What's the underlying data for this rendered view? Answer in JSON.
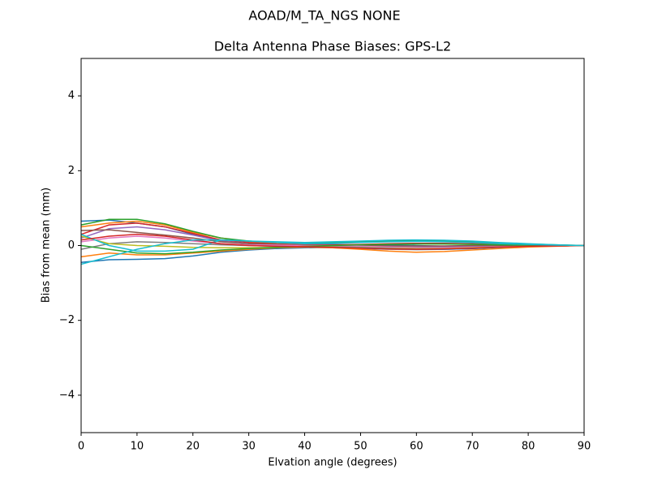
{
  "chart_data": {
    "type": "line",
    "suptitle": "AOAD/M_TA_NGS   NONE",
    "title": "Delta Antenna Phase Biases: GPS-L2",
    "xlabel": "Elvation angle (degrees)",
    "ylabel": "Bias from mean (mm)",
    "x": [
      0,
      5,
      10,
      15,
      20,
      25,
      30,
      35,
      40,
      45,
      50,
      55,
      60,
      65,
      70,
      75,
      80,
      85,
      90
    ],
    "xlim": [
      0,
      90
    ],
    "xticks": [
      0,
      10,
      20,
      30,
      40,
      50,
      60,
      70,
      80,
      90
    ],
    "ylim": [
      -5,
      5
    ],
    "yticks": [
      {
        "value": -4,
        "label": "−4"
      },
      {
        "value": -2,
        "label": "−2"
      },
      0,
      2,
      4
    ],
    "series": [
      {
        "color": "#1f77b4",
        "values": [
          0.65,
          0.68,
          0.6,
          0.5,
          0.3,
          0.15,
          0.1,
          0.08,
          0.05,
          0.03,
          0.02,
          0.01,
          0,
          -0.02,
          -0.03,
          -0.03,
          -0.02,
          -0.01,
          0
        ]
      },
      {
        "color": "#ff7f0e",
        "values": [
          0.5,
          0.6,
          0.65,
          0.55,
          0.35,
          0.2,
          0.1,
          0.05,
          0.02,
          0,
          -0.02,
          -0.04,
          -0.05,
          -0.05,
          -0.04,
          -0.03,
          -0.02,
          -0.01,
          0
        ]
      },
      {
        "color": "#2ca02c",
        "values": [
          0.55,
          0.7,
          0.7,
          0.58,
          0.38,
          0.2,
          0.12,
          0.08,
          0.06,
          0.08,
          0.1,
          0.12,
          0.13,
          0.12,
          0.1,
          0.07,
          0.04,
          0.02,
          0
        ]
      },
      {
        "color": "#d62728",
        "values": [
          0.3,
          0.55,
          0.6,
          0.5,
          0.32,
          0.15,
          0.08,
          0.04,
          0.02,
          0.02,
          0.03,
          0.05,
          0.06,
          0.06,
          0.05,
          0.03,
          0.02,
          0.01,
          0
        ]
      },
      {
        "color": "#9467bd",
        "values": [
          0.2,
          0.45,
          0.5,
          0.42,
          0.28,
          0.12,
          0.05,
          0.02,
          0,
          -0.02,
          -0.03,
          -0.04,
          -0.04,
          -0.03,
          -0.02,
          -0.01,
          0,
          0,
          0
        ]
      },
      {
        "color": "#8c564b",
        "values": [
          0.4,
          0.42,
          0.35,
          0.28,
          0.2,
          0.1,
          0.05,
          0.03,
          0.01,
          0,
          0,
          -0.01,
          -0.01,
          -0.01,
          0,
          0,
          0,
          0,
          0
        ]
      },
      {
        "color": "#e377c2",
        "values": [
          0.1,
          0.2,
          0.25,
          0.2,
          0.12,
          0.05,
          0.02,
          0.01,
          0,
          0,
          -0.02,
          -0.04,
          -0.06,
          -0.06,
          -0.05,
          -0.03,
          -0.02,
          -0.01,
          0
        ]
      },
      {
        "color": "#7f7f7f",
        "values": [
          -0.1,
          0.05,
          0.1,
          0.08,
          0.05,
          0.02,
          0,
          -0.02,
          -0.04,
          -0.06,
          -0.08,
          -0.1,
          -0.11,
          -0.1,
          -0.08,
          -0.05,
          -0.03,
          -0.01,
          0
        ]
      },
      {
        "color": "#bcbd22",
        "values": [
          0.25,
          0.05,
          0,
          -0.02,
          -0.05,
          -0.06,
          -0.06,
          -0.05,
          -0.04,
          -0.04,
          -0.05,
          -0.07,
          -0.08,
          -0.08,
          -0.06,
          -0.04,
          -0.02,
          -0.01,
          0
        ]
      },
      {
        "color": "#17becf",
        "values": [
          0.3,
          0,
          -0.15,
          -0.15,
          -0.1,
          0.15,
          0.12,
          0.1,
          0.08,
          0.1,
          0.12,
          0.14,
          0.15,
          0.14,
          0.12,
          0.08,
          0.05,
          0.02,
          0
        ]
      },
      {
        "color": "#1f77b4",
        "values": [
          -0.45,
          -0.38,
          -0.37,
          -0.35,
          -0.28,
          -0.18,
          -0.12,
          -0.08,
          -0.06,
          -0.05,
          -0.06,
          -0.08,
          -0.1,
          -0.1,
          -0.08,
          -0.05,
          -0.03,
          -0.01,
          0
        ]
      },
      {
        "color": "#ff7f0e",
        "values": [
          -0.3,
          -0.2,
          -0.25,
          -0.25,
          -0.2,
          -0.15,
          -0.1,
          -0.06,
          -0.04,
          -0.06,
          -0.1,
          -0.15,
          -0.18,
          -0.16,
          -0.12,
          -0.08,
          -0.04,
          -0.02,
          0
        ]
      },
      {
        "color": "#2ca02c",
        "values": [
          0,
          -0.1,
          -0.2,
          -0.22,
          -0.18,
          -0.12,
          -0.08,
          -0.05,
          -0.02,
          0,
          0.02,
          0.03,
          0.04,
          0.04,
          0.03,
          0.02,
          0.01,
          0,
          0
        ]
      },
      {
        "color": "#d62728",
        "values": [
          0.15,
          0.25,
          0.3,
          0.25,
          0.15,
          0.05,
          0,
          -0.02,
          -0.03,
          -0.05,
          -0.07,
          -0.09,
          -0.1,
          -0.09,
          -0.07,
          -0.04,
          -0.02,
          -0.01,
          0
        ]
      },
      {
        "color": "#17becf",
        "values": [
          -0.5,
          -0.3,
          -0.1,
          0.05,
          0.15,
          0.15,
          0.12,
          0.08,
          0.05,
          0.06,
          0.08,
          0.1,
          0.11,
          0.1,
          0.08,
          0.05,
          0.03,
          0.01,
          0
        ]
      }
    ]
  }
}
